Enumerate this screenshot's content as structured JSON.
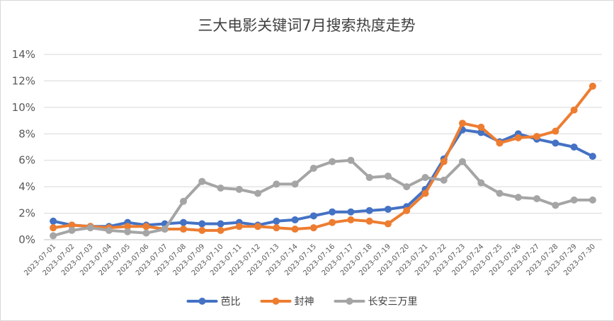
{
  "chart_data": {
    "type": "line",
    "title": "三大电影关键词7月搜索热度走势",
    "xlabel": "",
    "ylabel": "",
    "ylim": [
      0,
      0.14
    ],
    "y_ticks": [
      "0%",
      "2%",
      "4%",
      "6%",
      "8%",
      "10%",
      "12%",
      "14%"
    ],
    "grid": true,
    "legend_position": "bottom",
    "categories": [
      "2023-07-01",
      "2023-07-02",
      "2023-07-03",
      "2023-07-04",
      "2023-07-05",
      "2023-07-06",
      "2023-07-07",
      "2023-07-08",
      "2023-07-09",
      "2023-07-10",
      "2023-07-11",
      "2023-07-12",
      "2023-07-13",
      "2023-07-14",
      "2023-07-15",
      "2023-07-16",
      "2023-07-17",
      "2023-07-18",
      "2023-07-19",
      "2023-07-20",
      "2023-07-21",
      "2023-07-22",
      "2023-07-23",
      "2023-07-24",
      "2023-07-25",
      "2023-07-26",
      "2023-07-27",
      "2023-07-28",
      "2023-07-29",
      "2023-07-30"
    ],
    "series": [
      {
        "name": "芭比",
        "color": "#4472c4",
        "values": [
          0.014,
          0.011,
          0.01,
          0.01,
          0.013,
          0.011,
          0.012,
          0.013,
          0.012,
          0.012,
          0.013,
          0.011,
          0.014,
          0.015,
          0.018,
          0.021,
          0.021,
          0.022,
          0.023,
          0.025,
          0.038,
          0.061,
          0.083,
          0.081,
          0.074,
          0.08,
          0.076,
          0.073,
          0.07,
          0.063
        ]
      },
      {
        "name": "封神",
        "color": "#ed7d31",
        "values": [
          0.009,
          0.011,
          0.01,
          0.009,
          0.01,
          0.01,
          0.008,
          0.008,
          0.007,
          0.007,
          0.01,
          0.01,
          0.009,
          0.008,
          0.009,
          0.013,
          0.015,
          0.014,
          0.012,
          0.022,
          0.035,
          0.059,
          0.088,
          0.085,
          0.073,
          0.077,
          0.078,
          0.082,
          0.098,
          0.116
        ]
      },
      {
        "name": "长安三万里",
        "color": "#a5a5a5",
        "values": [
          0.003,
          0.007,
          0.009,
          0.007,
          0.006,
          0.005,
          0.008,
          0.029,
          0.044,
          0.039,
          0.038,
          0.035,
          0.042,
          0.042,
          0.054,
          0.059,
          0.06,
          0.047,
          0.048,
          0.04,
          0.047,
          0.045,
          0.059,
          0.043,
          0.035,
          0.032,
          0.031,
          0.026,
          0.03,
          0.03
        ]
      }
    ]
  }
}
